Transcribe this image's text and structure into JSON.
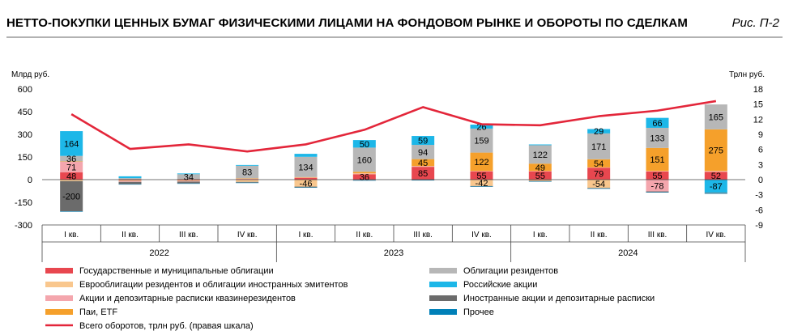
{
  "title": "НЕТТО-ПОКУПКИ ЦЕННЫХ БУМАГ ФИЗИЧЕСКИМИ ЛИЦАМИ НА ФОНДОВОМ РЫНКЕ И ОБОРОТЫ ПО СДЕЛКАМ",
  "figure_label": "Рис. П-2",
  "chart_data": {
    "type": "bar",
    "stacked": true,
    "left_unit": "Млрд руб.",
    "right_unit": "Трлн руб.",
    "ylim": [
      -300,
      600
    ],
    "y2lim": [
      -9,
      18
    ],
    "yticks": [
      "600",
      "450",
      "300",
      "150",
      "0",
      "-150",
      "-300"
    ],
    "y2ticks": [
      "18",
      "15",
      "12",
      "9",
      "6",
      "3",
      "0",
      "-3",
      "-6",
      "-9"
    ],
    "categories": [
      "I кв.",
      "II кв.",
      "III кв.",
      "IV кв.",
      "I кв.",
      "II кв.",
      "III кв.",
      "IV кв.",
      "I кв.",
      "II кв.",
      "III кв.",
      "IV кв."
    ],
    "years": [
      "2022",
      "2023",
      "2024"
    ],
    "series": [
      {
        "key": "gov",
        "name": "Государственные и муниципальные облигации",
        "color": "#e8474f",
        "values": [
          48,
          -5,
          -5,
          3,
          12,
          36,
          85,
          55,
          55,
          79,
          55,
          52
        ]
      },
      {
        "key": "euro",
        "name": "Еврооблигации резидентов и облигации иностранных эмитентов",
        "color": "#f9c78e",
        "values": [
          -10,
          -5,
          -5,
          -15,
          -46,
          4,
          4,
          -42,
          -8,
          -54,
          4,
          4
        ]
      },
      {
        "key": "quasi",
        "name": "Акции и депозитарные расписки квазинерезидентов",
        "color": "#f4a6ad",
        "values": [
          71,
          -5,
          -3,
          3,
          2,
          2,
          2,
          2,
          2,
          2,
          -78,
          2
        ]
      },
      {
        "key": "funds",
        "name": "Паи, ETF",
        "color": "#f5a02b",
        "values": [
          2,
          2,
          2,
          3,
          3,
          10,
          45,
          122,
          49,
          54,
          151,
          275
        ]
      },
      {
        "key": "res",
        "name": "Облигации резидентов",
        "color": "#b7b7b7",
        "values": [
          36,
          8,
          34,
          83,
          134,
          160,
          94,
          159,
          122,
          171,
          133,
          165
        ]
      },
      {
        "key": "rus",
        "name": "Российские акции",
        "color": "#1db7e8",
        "values": [
          164,
          12,
          5,
          5,
          20,
          50,
          59,
          26,
          5,
          29,
          66,
          -87
        ]
      },
      {
        "key": "foreign",
        "name": "Иностранные акции и депозитарные расписки",
        "color": "#6b6b6b",
        "values": [
          -200,
          -15,
          -12,
          -5,
          -5,
          -4,
          -3,
          -3,
          -3,
          -4,
          -5,
          -4
        ]
      },
      {
        "key": "other",
        "name": "Прочее",
        "color": "#0080b8",
        "values": [
          -3,
          -2,
          -2,
          -2,
          -2,
          -2,
          -2,
          -2,
          -2,
          -2,
          -2,
          -2
        ]
      }
    ],
    "line": {
      "name": "Всего оборотов, трлн руб. (правая шкала)",
      "color": "#e3263a",
      "values": [
        13.0,
        6.1,
        7.0,
        5.6,
        7.0,
        9.9,
        14.4,
        11.0,
        10.8,
        12.6,
        13.7,
        15.6
      ]
    },
    "labels": [
      {
        "s": "gov",
        "i": 0,
        "t": "48"
      },
      {
        "s": "quasi",
        "i": 0,
        "t": "71"
      },
      {
        "s": "res",
        "i": 0,
        "t": "36"
      },
      {
        "s": "rus",
        "i": 0,
        "t": "164"
      },
      {
        "s": "foreign",
        "i": 0,
        "t": "-200"
      },
      {
        "s": "res",
        "i": 2,
        "t": "34"
      },
      {
        "s": "res",
        "i": 3,
        "t": "83"
      },
      {
        "s": "res",
        "i": 4,
        "t": "134"
      },
      {
        "s": "euro",
        "i": 4,
        "t": "-46"
      },
      {
        "s": "gov",
        "i": 5,
        "t": "36"
      },
      {
        "s": "res",
        "i": 5,
        "t": "160"
      },
      {
        "s": "rus",
        "i": 5,
        "t": "50"
      },
      {
        "s": "gov",
        "i": 6,
        "t": "85"
      },
      {
        "s": "res",
        "i": 6,
        "t": "94"
      },
      {
        "s": "rus",
        "i": 6,
        "t": "59"
      },
      {
        "s": "funds",
        "i": 6,
        "t": "45"
      },
      {
        "s": "gov",
        "i": 7,
        "t": "55"
      },
      {
        "s": "res",
        "i": 7,
        "t": "159"
      },
      {
        "s": "rus",
        "i": 7,
        "t": "26"
      },
      {
        "s": "funds",
        "i": 7,
        "t": "122"
      },
      {
        "s": "euro",
        "i": 7,
        "t": "-42"
      },
      {
        "s": "gov",
        "i": 8,
        "t": "55"
      },
      {
        "s": "res",
        "i": 8,
        "t": "122"
      },
      {
        "s": "funds",
        "i": 8,
        "t": "49"
      },
      {
        "s": "gov",
        "i": 9,
        "t": "79"
      },
      {
        "s": "res",
        "i": 9,
        "t": "171"
      },
      {
        "s": "rus",
        "i": 9,
        "t": "29"
      },
      {
        "s": "funds",
        "i": 9,
        "t": "54"
      },
      {
        "s": "euro",
        "i": 9,
        "t": "-54"
      },
      {
        "s": "gov",
        "i": 10,
        "t": "55"
      },
      {
        "s": "res",
        "i": 10,
        "t": "133"
      },
      {
        "s": "rus",
        "i": 10,
        "t": "66"
      },
      {
        "s": "funds",
        "i": 10,
        "t": "151"
      },
      {
        "s": "quasi",
        "i": 10,
        "t": "-78"
      },
      {
        "s": "gov",
        "i": 11,
        "t": "52"
      },
      {
        "s": "res",
        "i": 11,
        "t": "165"
      },
      {
        "s": "funds",
        "i": 11,
        "t": "275"
      },
      {
        "s": "rus",
        "i": 11,
        "t": "-87"
      }
    ]
  }
}
